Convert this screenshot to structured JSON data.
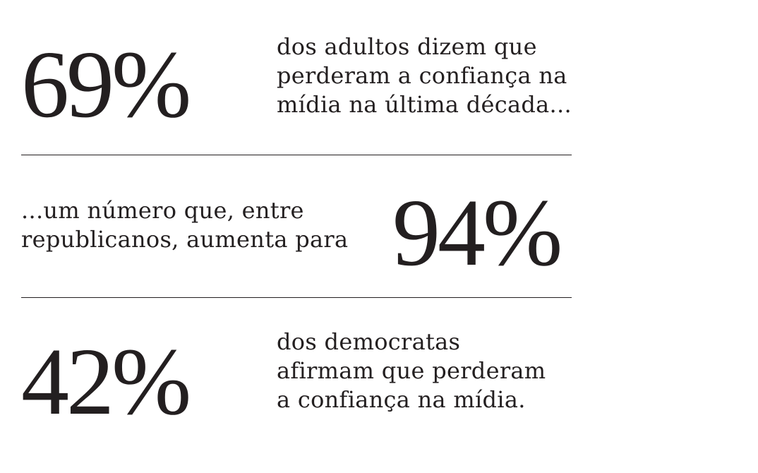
{
  "stats": [
    {
      "value": "69%",
      "lines": [
        "dos adultos dizem que",
        "perderam a confiança na",
        "mídia na última década..."
      ]
    },
    {
      "value": "94%",
      "lines": [
        "...um número que, entre",
        "republicanos, aumenta para"
      ]
    },
    {
      "value": "42%",
      "lines": [
        "dos democratas",
        "afirmam que perderam",
        "a confiança na mídia."
      ]
    }
  ]
}
